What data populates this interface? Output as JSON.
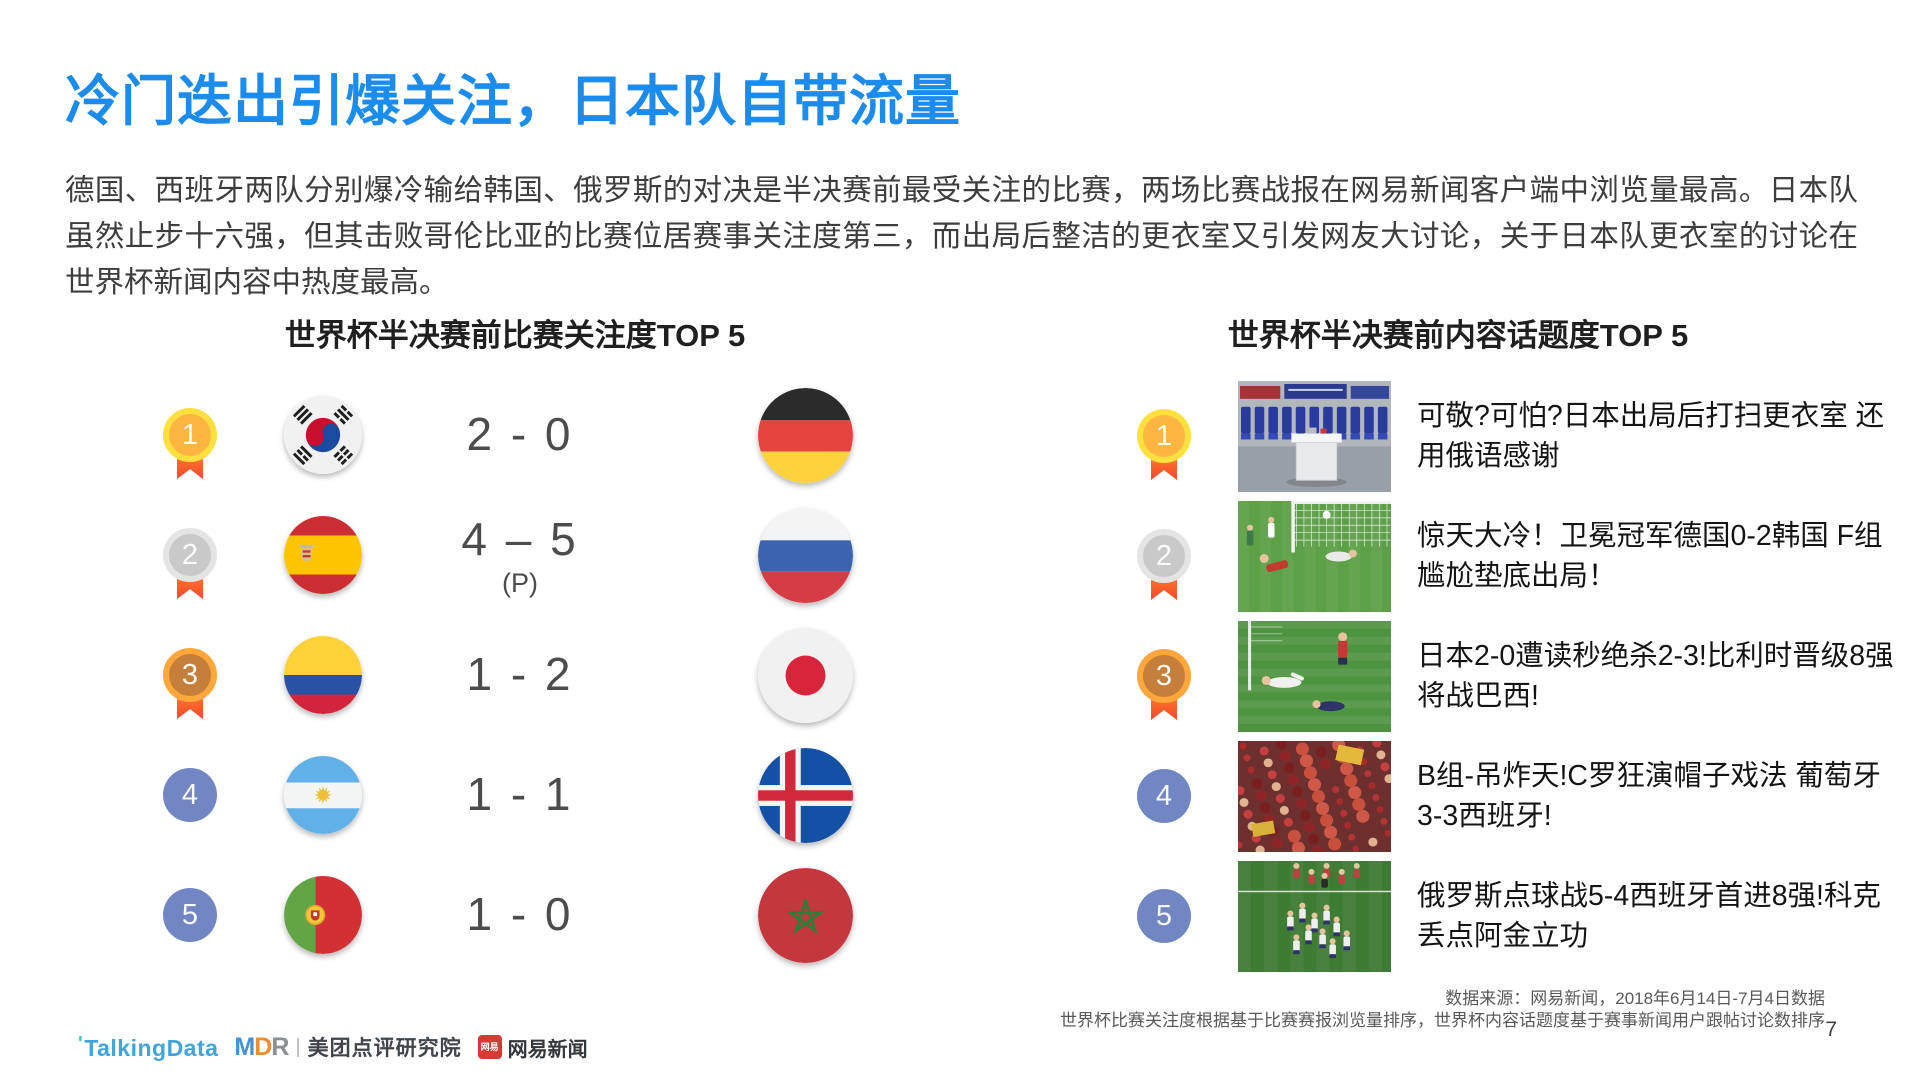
{
  "page": {
    "title": "冷门迭出引爆关注，日本队自带流量",
    "description": "德国、西班牙两队分别爆冷输给韩国、俄罗斯的对决是半决赛前最受关注的比赛，两场比赛战报在网易新闻客户端中浏览量最高。日本队虽然止步十六强，但其击败哥伦比亚的比赛位居赛事关注度第三，而出局后整洁的更衣室又引发网友大讨论，关于日本队更衣室的讨论在世界杯新闻内容中热度最高。",
    "page_number": "7"
  },
  "colors": {
    "accent_blue": "#1C8CEC",
    "medal_gold": "#FFE03F",
    "medal_silver": "#E4E4E4",
    "medal_bronze": "#FFA73B",
    "medal_plain": "#7186C3",
    "ribbon_red": "#F6482A"
  },
  "left_panel": {
    "title": "世界杯半决赛前比赛关注度TOP 5",
    "rows": [
      {
        "rank": "1",
        "medal": "gold",
        "home_flag": "south-korea",
        "score": "2 - 0",
        "score_note": "",
        "away_flag": "germany"
      },
      {
        "rank": "2",
        "medal": "silver",
        "home_flag": "spain",
        "score": "4 – 5",
        "score_note": "(P)",
        "away_flag": "russia"
      },
      {
        "rank": "3",
        "medal": "bronze",
        "home_flag": "colombia",
        "score": "1 - 2",
        "score_note": "",
        "away_flag": "japan"
      },
      {
        "rank": "4",
        "medal": "plain",
        "home_flag": "argentina",
        "score": "1 - 1",
        "score_note": "",
        "away_flag": "iceland"
      },
      {
        "rank": "5",
        "medal": "plain",
        "home_flag": "portugal",
        "score": "1 - 0",
        "score_note": "",
        "away_flag": "morocco"
      }
    ]
  },
  "right_panel": {
    "title": "世界杯半决赛前内容话题度TOP 5",
    "rows": [
      {
        "rank": "1",
        "medal": "gold",
        "thumb": "locker-room",
        "text": "可敬?可怕?日本出局后打扫更衣室 还用俄语感谢"
      },
      {
        "rank": "2",
        "medal": "silver",
        "thumb": "goal-save",
        "text": "惊天大冷！卫冕冠军德国0-2韩国 F组尴尬垫底出局！"
      },
      {
        "rank": "3",
        "medal": "bronze",
        "thumb": "players-down",
        "text": "日本2-0遭读秒绝杀2-3!比利时晋级8强将战巴西!"
      },
      {
        "rank": "4",
        "medal": "plain",
        "thumb": "red-crowd",
        "text": "B组-吊炸天!C罗狂演帽子戏法 葡萄牙3-3西班牙!"
      },
      {
        "rank": "5",
        "medal": "plain",
        "thumb": "celebration",
        "text": "俄罗斯点球战5-4西班牙首进8强!科克丢点阿金立功"
      }
    ]
  },
  "footer": {
    "source_line1": "数据来源：网易新闻，2018年6月14日-7月4日数据",
    "source_line2": "世界杯比赛关注度根据基于比赛赛报浏览量排序，世界杯内容话题度基于赛事新闻用户跟帖讨论数排序",
    "logos": {
      "talkingdata": "TalkingData",
      "mdr_m": "M",
      "mdr_d": "D",
      "mdr_r": "R",
      "separator": "|",
      "meituan": "美团点评研究院",
      "netease_badge": "网易",
      "netease": "网易新闻"
    }
  }
}
